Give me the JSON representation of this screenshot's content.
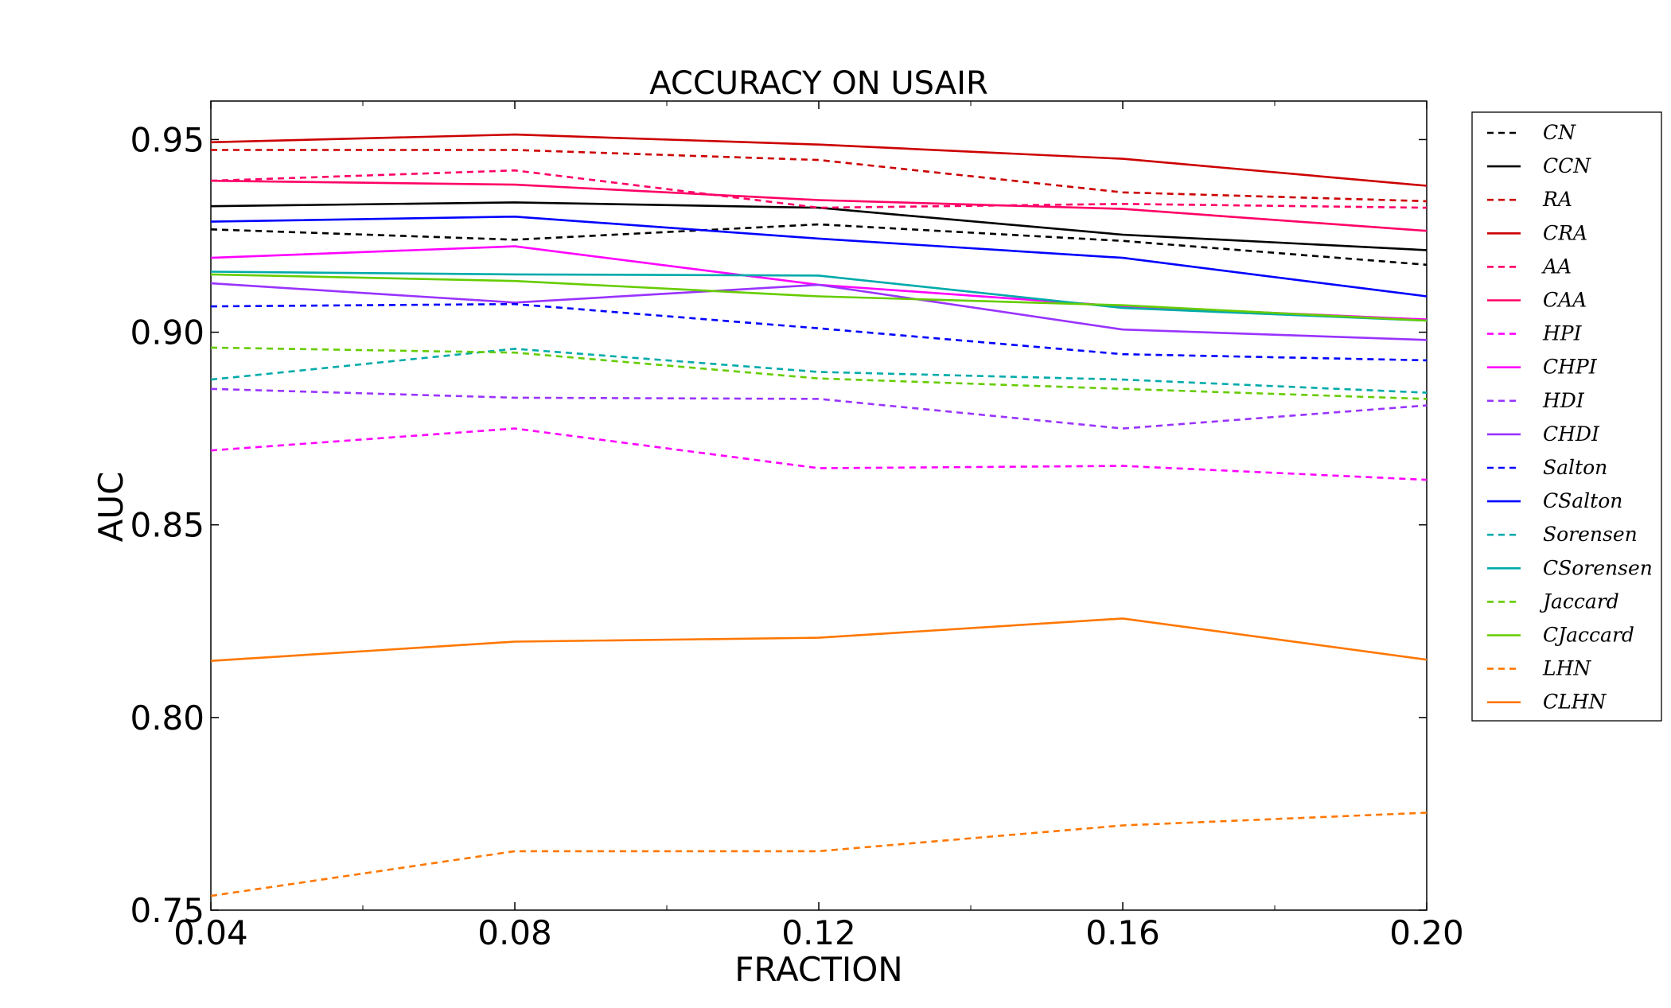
{
  "chart_data": {
    "type": "line",
    "title": "ACCURACY ON USAIR",
    "xlabel": "FRACTION",
    "ylabel": "AUC",
    "x": [
      0.04,
      0.08,
      0.12,
      0.16,
      0.2
    ],
    "x_tick_labels": [
      "0.04",
      "0.08",
      "0.12",
      "0.16",
      "0.20"
    ],
    "y_tick_labels": [
      "0.75",
      "0.80",
      "0.85",
      "0.90",
      "0.95"
    ],
    "y_ticks": [
      0.75,
      0.8,
      0.85,
      0.9,
      0.95
    ],
    "xlim": [
      0.04,
      0.2
    ],
    "ylim": [
      0.75,
      0.96
    ],
    "grid": false,
    "legend_position": "outside-right",
    "series": [
      {
        "name": "CN",
        "style": "dashed",
        "color": "#000000",
        "values": [
          0.9267,
          0.924,
          0.928,
          0.9237,
          0.9175
        ]
      },
      {
        "name": "CCN",
        "style": "solid",
        "color": "#000000",
        "values": [
          0.9327,
          0.9337,
          0.9323,
          0.9253,
          0.9213
        ]
      },
      {
        "name": "RA",
        "style": "dashed",
        "color": "#cc0000",
        "values": [
          0.9473,
          0.9473,
          0.9447,
          0.9363,
          0.934
        ]
      },
      {
        "name": "CRA",
        "style": "solid",
        "color": "#cc0000",
        "values": [
          0.9493,
          0.9513,
          0.9487,
          0.945,
          0.938
        ]
      },
      {
        "name": "AA",
        "style": "dashed",
        "color": "#ff0066",
        "values": [
          0.9393,
          0.942,
          0.9323,
          0.9333,
          0.9323
        ]
      },
      {
        "name": "CAA",
        "style": "solid",
        "color": "#ff0066",
        "values": [
          0.9393,
          0.9383,
          0.9343,
          0.932,
          0.9263
        ]
      },
      {
        "name": "HPI",
        "style": "dashed",
        "color": "#ff00ff",
        "values": [
          0.8693,
          0.875,
          0.8647,
          0.8653,
          0.8617
        ]
      },
      {
        "name": "CHPI",
        "style": "solid",
        "color": "#ff00ff",
        "values": [
          0.9193,
          0.9223,
          0.9123,
          0.9067,
          0.9033
        ]
      },
      {
        "name": "HDI",
        "style": "dashed",
        "color": "#9933ff",
        "values": [
          0.8853,
          0.883,
          0.8827,
          0.875,
          0.881
        ]
      },
      {
        "name": "CHDI",
        "style": "solid",
        "color": "#9933ff",
        "values": [
          0.9127,
          0.9077,
          0.9123,
          0.9007,
          0.898
        ]
      },
      {
        "name": "Salton",
        "style": "dashed",
        "color": "#0000ff",
        "values": [
          0.9067,
          0.9073,
          0.901,
          0.8943,
          0.8927
        ]
      },
      {
        "name": "CSalton",
        "style": "solid",
        "color": "#0000ff",
        "values": [
          0.9287,
          0.93,
          0.9243,
          0.9193,
          0.9093
        ]
      },
      {
        "name": "Sorensen",
        "style": "dashed",
        "color": "#00aaaa",
        "values": [
          0.8877,
          0.8957,
          0.8897,
          0.8877,
          0.8843
        ]
      },
      {
        "name": "CSorensen",
        "style": "solid",
        "color": "#00aaaa",
        "values": [
          0.9157,
          0.915,
          0.9147,
          0.9063,
          0.903
        ]
      },
      {
        "name": "Jaccard",
        "style": "dashed",
        "color": "#66cc00",
        "values": [
          0.896,
          0.8947,
          0.888,
          0.8853,
          0.8827
        ]
      },
      {
        "name": "CJaccard",
        "style": "solid",
        "color": "#66cc00",
        "values": [
          0.915,
          0.9133,
          0.9093,
          0.907,
          0.903
        ]
      },
      {
        "name": "LHN",
        "style": "dashed",
        "color": "#ff7700",
        "values": [
          0.7537,
          0.7653,
          0.7653,
          0.772,
          0.7753
        ]
      },
      {
        "name": "CLHN",
        "style": "solid",
        "color": "#ff7700",
        "values": [
          0.8147,
          0.8197,
          0.8207,
          0.8257,
          0.815
        ]
      }
    ]
  }
}
